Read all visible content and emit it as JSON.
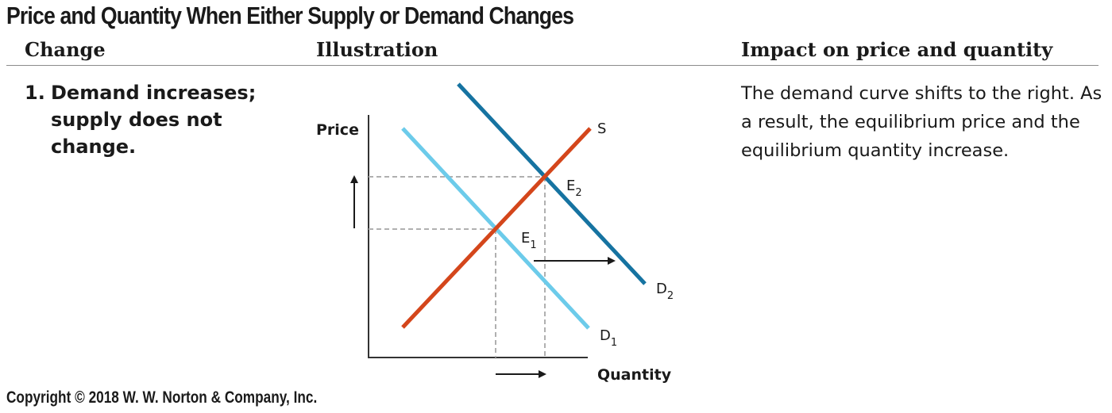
{
  "title": "Price and Quantity When Either Supply or Demand Changes",
  "headers": {
    "change": "Change",
    "illustration": "Illustration",
    "impact": "Impact on price and quantity"
  },
  "row": {
    "number": "1.",
    "change": "Demand increases; supply does not change.",
    "impact": "The demand curve shifts to the right. As a result, the equilibrium price and the equilibrium quantity increase."
  },
  "diagram": {
    "y_axis_label": "Price",
    "x_axis_label": "Quantity",
    "supply_label": "S",
    "demand1_label": "D",
    "demand1_sub": "1",
    "demand2_label": "D",
    "demand2_sub": "2",
    "eq1_label": "E",
    "eq1_sub": "1",
    "eq2_label": "E",
    "eq2_sub": "2",
    "colors": {
      "supply": "#d4461b",
      "demand1": "#6ccbea",
      "demand2": "#1673a1",
      "guides": "#b0b0b0",
      "axis": "#333333"
    }
  },
  "copyright": "Copyright © 2018 W. W. Norton & Company, Inc."
}
